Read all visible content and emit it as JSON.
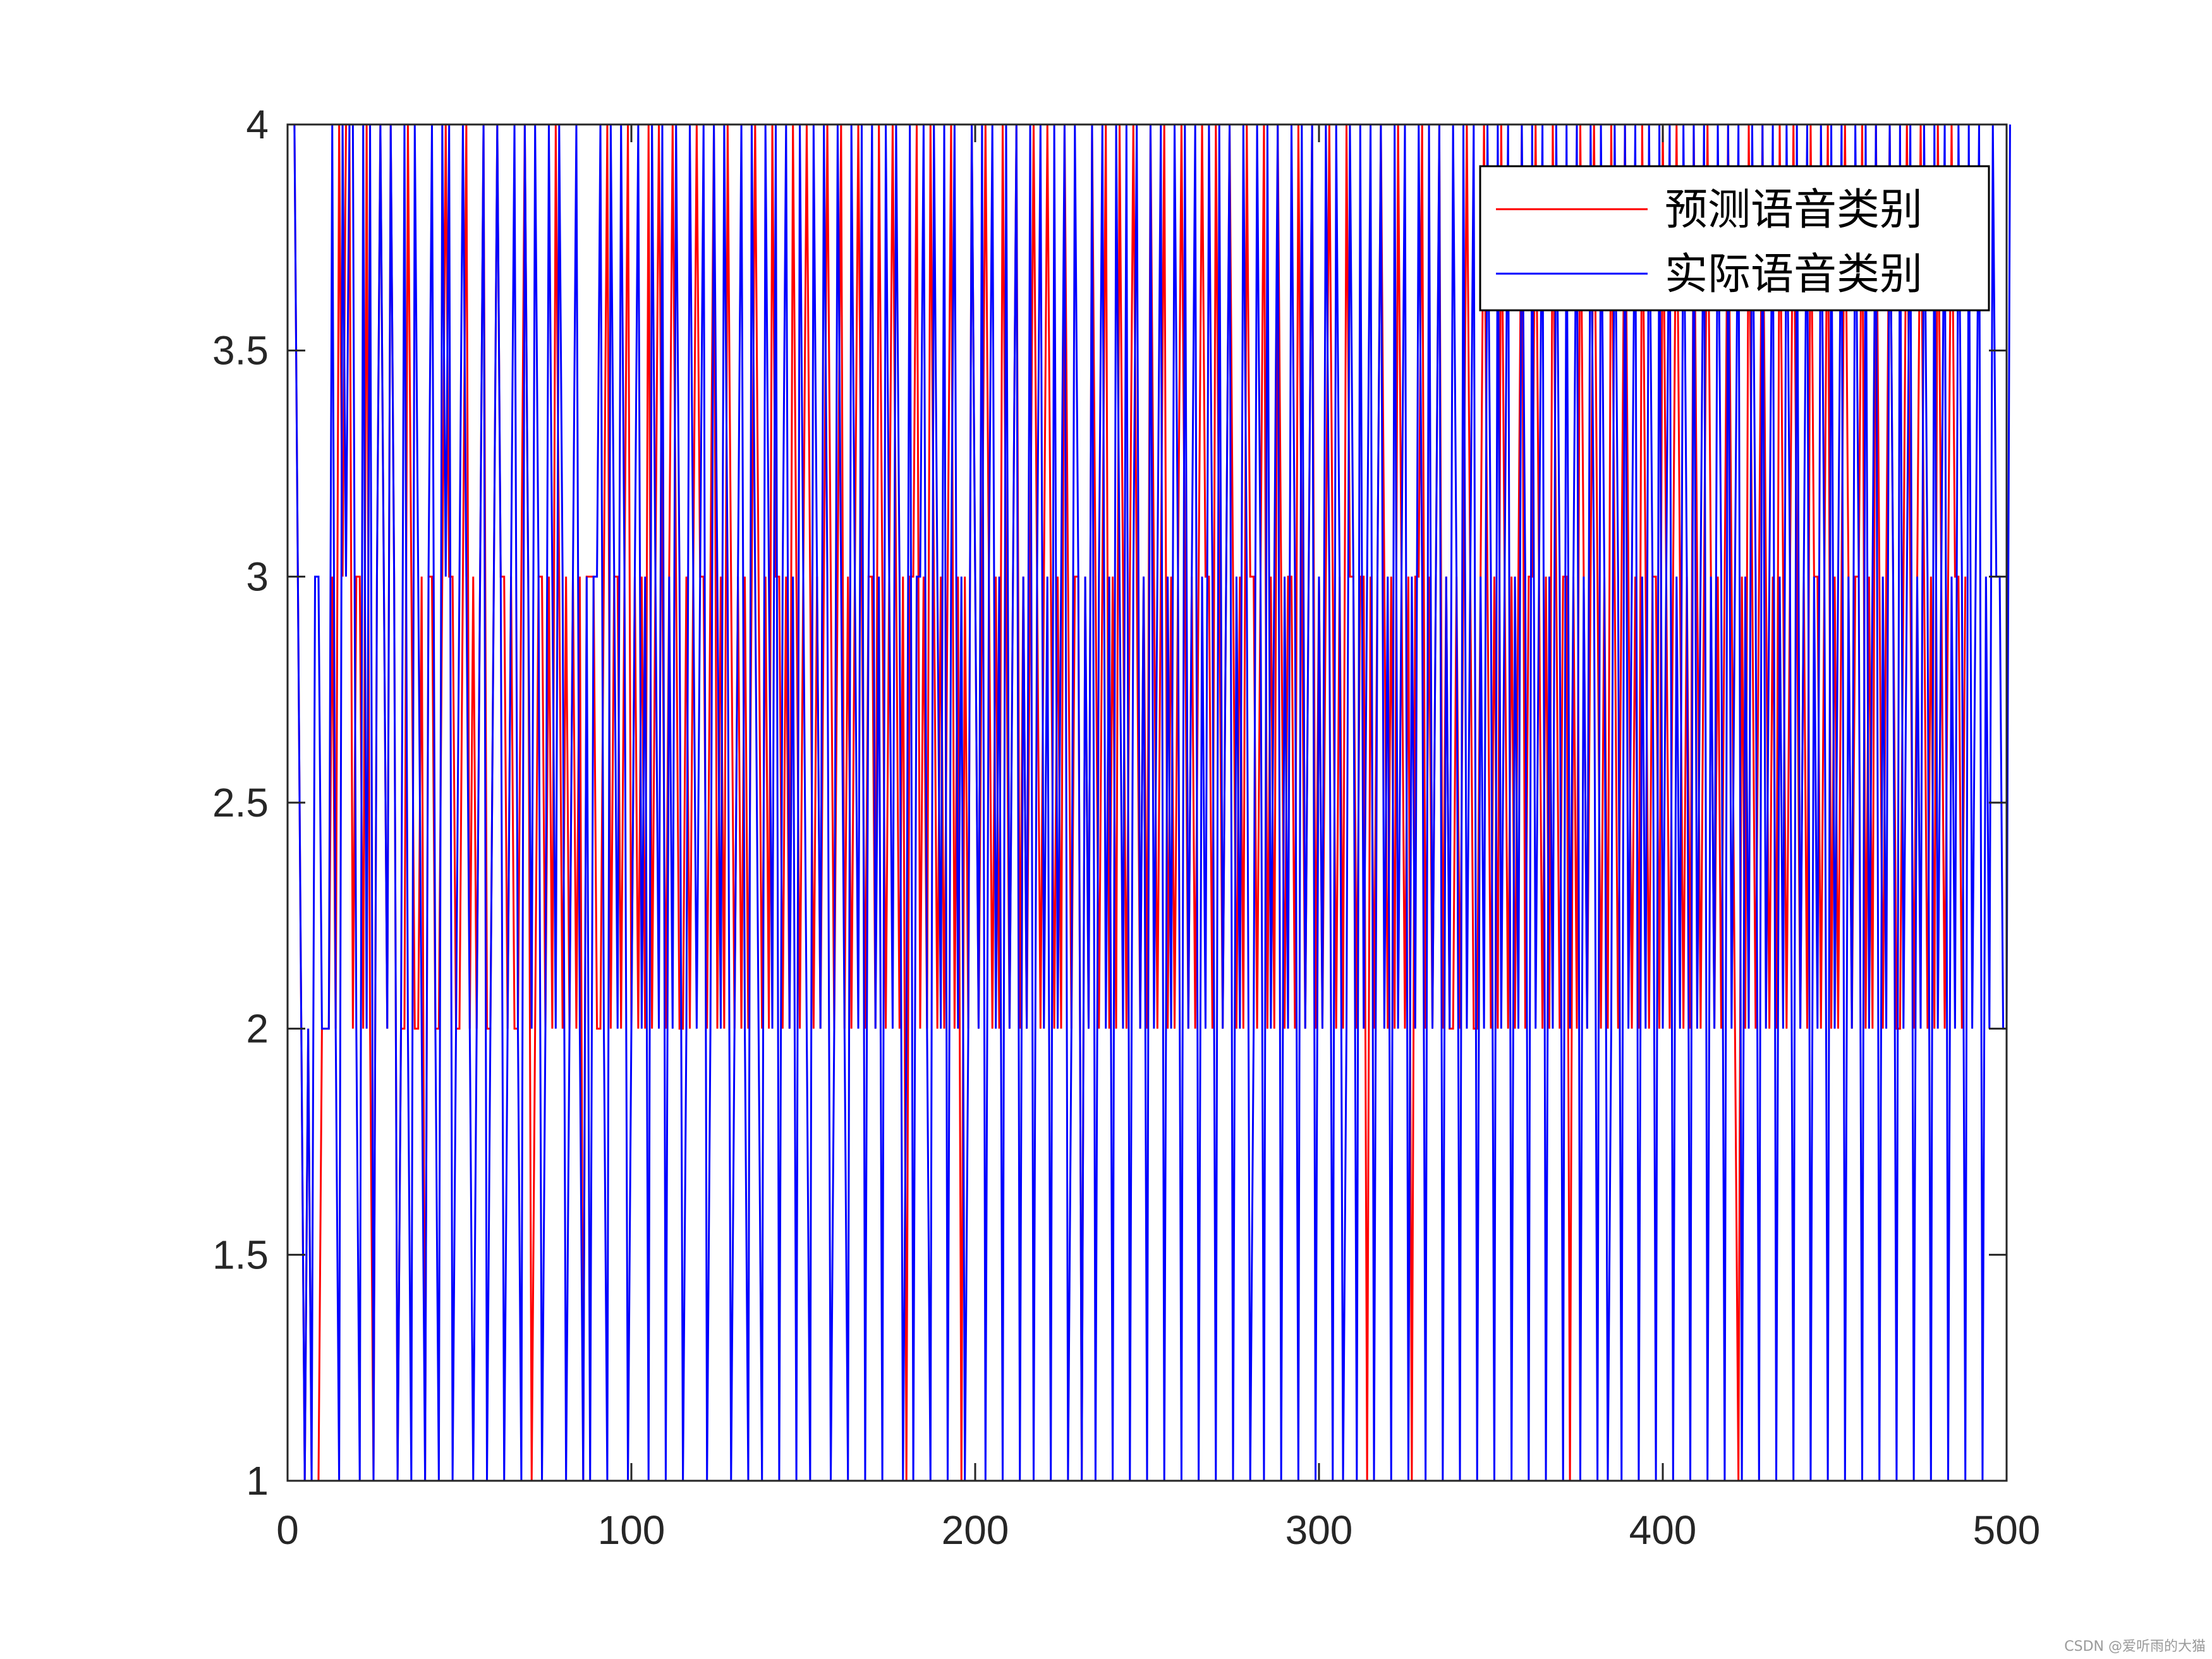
{
  "chart_data": {
    "type": "line",
    "title": "",
    "xlabel": "",
    "ylabel": "",
    "xlim": [
      0,
      500
    ],
    "ylim": [
      1,
      4
    ],
    "x_ticks": [
      "0",
      "100",
      "200",
      "300",
      "400",
      "500"
    ],
    "y_ticks": [
      "1",
      "1.5",
      "2",
      "2.5",
      "3",
      "3.5",
      "4"
    ],
    "grid": false,
    "box": true,
    "legend_position": "top-right",
    "series": [
      {
        "name": "预测语音类别",
        "color": "#ff0000",
        "style": "step-line",
        "x_start": 1,
        "values": [
          4,
          4,
          3,
          2,
          1,
          2,
          1,
          1,
          1,
          2,
          2,
          2,
          3,
          2,
          4,
          3,
          4,
          4,
          2,
          3,
          3,
          2,
          4,
          2,
          1,
          3,
          4,
          3,
          2,
          4,
          3,
          1,
          2,
          2,
          4,
          3,
          2,
          2,
          3,
          1,
          3,
          3,
          2,
          2,
          3,
          4,
          3,
          3,
          2,
          2,
          3,
          4,
          2,
          3,
          2,
          3,
          4,
          2,
          2,
          3,
          4,
          3,
          3,
          2,
          3,
          2,
          2,
          3,
          4,
          3,
          1,
          2,
          3,
          3,
          2,
          3,
          2,
          4,
          3,
          2,
          3,
          2,
          3,
          2,
          3,
          1,
          3,
          3,
          3,
          2,
          2,
          3,
          4,
          2,
          3,
          3,
          2,
          3,
          4,
          2,
          3,
          2,
          3,
          2,
          4,
          2,
          3,
          4,
          3,
          2,
          3,
          4,
          3,
          2,
          2,
          3,
          2,
          3,
          4,
          3,
          3,
          2,
          3,
          4,
          2,
          3,
          2,
          4,
          3,
          2,
          3,
          2,
          3,
          2,
          3,
          4,
          3,
          2,
          3,
          2,
          4,
          3,
          3,
          2,
          3,
          2,
          4,
          3,
          2,
          3,
          4,
          3,
          2,
          3,
          2,
          3,
          4,
          3,
          2,
          3,
          4,
          2,
          3,
          2,
          3,
          4,
          3,
          2,
          3,
          3,
          2,
          4,
          3,
          2,
          3,
          4,
          3,
          2,
          3,
          1,
          3,
          3,
          4,
          2,
          3,
          2,
          4,
          3,
          2,
          3,
          2,
          3,
          4,
          2,
          3,
          1,
          3,
          2,
          4,
          3,
          2,
          3,
          4,
          3,
          2,
          3,
          2,
          4,
          3,
          2,
          3,
          4,
          2,
          3,
          2,
          3,
          4,
          3,
          2,
          3,
          4,
          3,
          2,
          3,
          2,
          4,
          3,
          2,
          3,
          3,
          1,
          3,
          2,
          4,
          3,
          2,
          3,
          4,
          2,
          3,
          2,
          4,
          3,
          2,
          3,
          4,
          3,
          2,
          3,
          2,
          4,
          3,
          2,
          3,
          4,
          2,
          3,
          2,
          3,
          4,
          3,
          2,
          3,
          2,
          3,
          4,
          3,
          3,
          2,
          4,
          3,
          2,
          3,
          4,
          3,
          2,
          3,
          2,
          4,
          3,
          3,
          2,
          3,
          4,
          2,
          3,
          2,
          4,
          3,
          2,
          3,
          3,
          2,
          4,
          3,
          2,
          3,
          4,
          2,
          3,
          2,
          3,
          4,
          3,
          2,
          3,
          2,
          4,
          3,
          3,
          2,
          3,
          3,
          1,
          3,
          2,
          3,
          4,
          3,
          2,
          3,
          2,
          4,
          3,
          2,
          3,
          1,
          3,
          3,
          4,
          2,
          3,
          2,
          3,
          4,
          2,
          3,
          2,
          2,
          3,
          2,
          3,
          4,
          3,
          2,
          2,
          3,
          4,
          3,
          2,
          3,
          2,
          4,
          3,
          2,
          3,
          2,
          3,
          4,
          2,
          3,
          3,
          4,
          3,
          2,
          3,
          2,
          4,
          3,
          2,
          3,
          3,
          1,
          3,
          2,
          4,
          3,
          2,
          3,
          4,
          3,
          2,
          3,
          2,
          4,
          3,
          2,
          3,
          4,
          3,
          2,
          3,
          2,
          4,
          3,
          2,
          3,
          3,
          2,
          4,
          3,
          2,
          3,
          4,
          3,
          2,
          3,
          2,
          4,
          3,
          2,
          3,
          4,
          3,
          2,
          3,
          2,
          3,
          4,
          3,
          2,
          1,
          3,
          2,
          4,
          3,
          2,
          3,
          4,
          3,
          2,
          3,
          2,
          4,
          3,
          2,
          3,
          4,
          3,
          2,
          3,
          2,
          4,
          3,
          3,
          2,
          3,
          4,
          2,
          3,
          2,
          3,
          4,
          3,
          2,
          3,
          3,
          4,
          2,
          3,
          2,
          4,
          3,
          2,
          3,
          4,
          3,
          2,
          2,
          3,
          4,
          3,
          2,
          3,
          4,
          3,
          2,
          3,
          2,
          4,
          3,
          2,
          3,
          4,
          3,
          3,
          2,
          3
        ]
      },
      {
        "name": "实际语音类别",
        "color": "#0000ff",
        "style": "step-line",
        "x_start": 1,
        "values": [
          4,
          4,
          3,
          2,
          1,
          2,
          1,
          3,
          3,
          2,
          2,
          2,
          4,
          2,
          1,
          4,
          3,
          4,
          4,
          2,
          1,
          4,
          2,
          4,
          1,
          3,
          4,
          3,
          2,
          4,
          3,
          1,
          2,
          4,
          2,
          1,
          4,
          3,
          2,
          1,
          3,
          4,
          2,
          1,
          4,
          3,
          4,
          1,
          2,
          3,
          4,
          3,
          2,
          1,
          2,
          3,
          4,
          1,
          2,
          3,
          4,
          3,
          1,
          2,
          3,
          4,
          2,
          1,
          4,
          3,
          2,
          4,
          3,
          1,
          2,
          4,
          3,
          2,
          4,
          3,
          1,
          2,
          3,
          4,
          2,
          1,
          3,
          1,
          3,
          3,
          4,
          2,
          1,
          4,
          3,
          2,
          4,
          3,
          1,
          2,
          3,
          4,
          2,
          3,
          1,
          4,
          3,
          2,
          4,
          1,
          3,
          2,
          4,
          3,
          1,
          2,
          4,
          3,
          2,
          3,
          4,
          1,
          2,
          4,
          3,
          2,
          4,
          3,
          1,
          2,
          3,
          4,
          2,
          1,
          4,
          3,
          2,
          1,
          4,
          3,
          2,
          4,
          1,
          3,
          4,
          2,
          3,
          1,
          4,
          3,
          2,
          1,
          4,
          3,
          2,
          4,
          3,
          1,
          2,
          4,
          3,
          2,
          1,
          4,
          3,
          2,
          4,
          1,
          3,
          4,
          2,
          3,
          1,
          4,
          3,
          2,
          4,
          3,
          1,
          2,
          4,
          1,
          3,
          3,
          4,
          2,
          1,
          4,
          3,
          2,
          4,
          1,
          3,
          4,
          2,
          3,
          1,
          2,
          4,
          3,
          2,
          4,
          1,
          3,
          4,
          2,
          3,
          1,
          4,
          2,
          3,
          4,
          1,
          3,
          2,
          4,
          1,
          3,
          4,
          2,
          3,
          1,
          4,
          2,
          3,
          4,
          1,
          2,
          4,
          3,
          1,
          3,
          2,
          4,
          1,
          3,
          4,
          2,
          3,
          1,
          4,
          3,
          2,
          4,
          1,
          3,
          4,
          2,
          3,
          1,
          4,
          2,
          3,
          4,
          1,
          3,
          2,
          4,
          3,
          1,
          4,
          2,
          3,
          4,
          1,
          3,
          2,
          4,
          3,
          1,
          4,
          2,
          3,
          4,
          1,
          3,
          2,
          4,
          3,
          1,
          2,
          4,
          3,
          1,
          4,
          2,
          3,
          4,
          1,
          3,
          2,
          4,
          3,
          1,
          4,
          2,
          3,
          4,
          1,
          3,
          2,
          4,
          3,
          1,
          4,
          3,
          1,
          2,
          4,
          3,
          1,
          4,
          2,
          3,
          4,
          1,
          3,
          4,
          2,
          3,
          1,
          4,
          2,
          3,
          4,
          1,
          3,
          2,
          4,
          3,
          1,
          4,
          2,
          3,
          4,
          1,
          3,
          2,
          4,
          3,
          1,
          4,
          2,
          3,
          4,
          1,
          3,
          2,
          4,
          3,
          1,
          4,
          2,
          3,
          4,
          1,
          3,
          2,
          4,
          3,
          1,
          4,
          2,
          3,
          4,
          1,
          3,
          2,
          4,
          3,
          1,
          4,
          2,
          3,
          4,
          1,
          3,
          2,
          4,
          3,
          1,
          4,
          3,
          1,
          2,
          4,
          3,
          1,
          4,
          2,
          3,
          4,
          1,
          3,
          2,
          4,
          3,
          1,
          4,
          2,
          3,
          4,
          1,
          3,
          2,
          4,
          3,
          1,
          4,
          2,
          3,
          4,
          1,
          3,
          2,
          4,
          3,
          1,
          4,
          2,
          3,
          4,
          1,
          3,
          2,
          4,
          3,
          1,
          4,
          2,
          3,
          4,
          1,
          3,
          2,
          4,
          3,
          1,
          4,
          2,
          3,
          4,
          1,
          3,
          2,
          4,
          3,
          1,
          4,
          2,
          3,
          4,
          1,
          3,
          2,
          4,
          3,
          1,
          4,
          2,
          3,
          4,
          1,
          3,
          2,
          4,
          3,
          1,
          4,
          2,
          3,
          4,
          1,
          3,
          2,
          4,
          3,
          1,
          4,
          2,
          3,
          4,
          1,
          3,
          2,
          4,
          3,
          1,
          4,
          2,
          3,
          4,
          1,
          3,
          2,
          4,
          3,
          3,
          2,
          2,
          4
        ]
      }
    ]
  },
  "watermark": "CSDN @爱听雨的大猫"
}
